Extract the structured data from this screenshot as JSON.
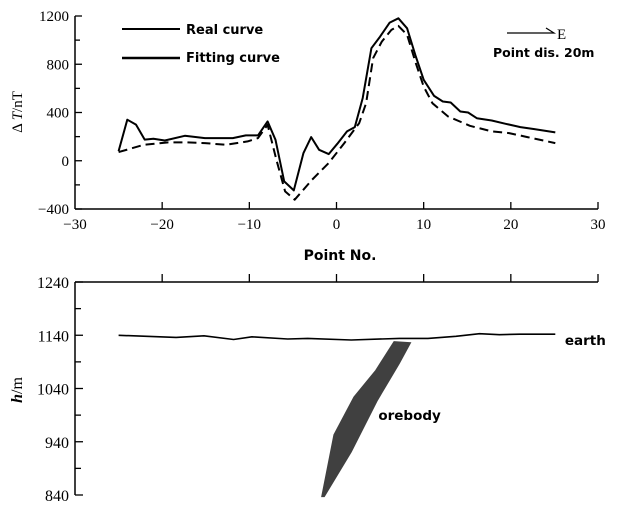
{
  "chart_data": [
    {
      "type": "line",
      "xlabel": "Point No.",
      "ylabel_prefix": "Δ ",
      "ylabel_var": "T",
      "ylabel_unit": "/nT",
      "xlim": [
        -30,
        30
      ],
      "ylim": [
        -400,
        1200
      ],
      "xticks": [
        -30,
        -20,
        -10,
        0,
        10,
        20,
        30
      ],
      "yticks": [
        -400,
        0,
        400,
        800,
        1200
      ],
      "grid": false,
      "legend_placement": "top-left",
      "annotation_arrow_label": "E",
      "annotation_text": "Point dis. 20m",
      "series": [
        {
          "name": "Real curve",
          "style": "solid",
          "color": "#000000",
          "x": [
            -25,
            -24,
            -23,
            -22,
            -21,
            -19.7,
            -17.4,
            -15.1,
            -11.9,
            -10.4,
            -9,
            -7.9,
            -7,
            -6,
            -4.9,
            -3.8,
            -2.9,
            -2,
            -0.9,
            0.1,
            1.2,
            2.1,
            3,
            4,
            5,
            6.1,
            7.1,
            8.1,
            9.1,
            10,
            11.2,
            12.2,
            13.1,
            14.2,
            15.1,
            16.1,
            17.8,
            19.4,
            21.1,
            22.7,
            25.1
          ],
          "y": [
            80,
            340,
            300,
            175,
            182,
            168,
            207,
            188,
            188,
            210,
            210,
            326,
            174,
            -171,
            -246,
            63,
            196,
            91,
            55,
            141,
            243,
            279,
            519,
            933,
            1029,
            1145,
            1181,
            1098,
            864,
            671,
            538,
            491,
            483,
            408,
            400,
            353,
            334,
            306,
            279,
            262,
            235
          ]
        },
        {
          "name": "Fitting curve",
          "style": "dashed",
          "color": "#000000",
          "x": [
            -25,
            -22.1,
            -19.3,
            -17.2,
            -15.1,
            -12.7,
            -10.2,
            -9,
            -7.9,
            -6.9,
            -5.9,
            -4.8,
            -2.8,
            -0.9,
            0.9,
            2.6,
            3.4,
            4.2,
            5.2,
            6.3,
            7.1,
            8.1,
            9.1,
            10,
            11,
            12.8,
            15.3,
            17.8,
            19.8,
            21.9,
            25.1
          ],
          "y": [
            72,
            132,
            152,
            152,
            146,
            132,
            160,
            188,
            298,
            8,
            -254,
            -323,
            -157,
            -19,
            146,
            312,
            477,
            850,
            988,
            1085,
            1118,
            1043,
            809,
            615,
            477,
            367,
            290,
            243,
            229,
            196,
            146
          ]
        }
      ]
    },
    {
      "type": "area",
      "ylabel_var": "h",
      "ylabel_unit": "/m",
      "xlim": [
        -30,
        30
      ],
      "ylim": [
        840,
        1240
      ],
      "xticks": [
        -30,
        -20,
        -10,
        0,
        10,
        20,
        30
      ],
      "yticks": [
        840,
        940,
        1040,
        1140,
        1240
      ],
      "grid": false,
      "earth": {
        "label": "earth",
        "x": [
          -25,
          -18.4,
          -15.2,
          -11.8,
          -9.7,
          -5.6,
          -3.3,
          1.7,
          7.2,
          10.5,
          13.7,
          16.4,
          18.7,
          21,
          25.1
        ],
        "y": [
          1140,
          1136,
          1139,
          1132,
          1137,
          1133,
          1134,
          1131,
          1134,
          1134,
          1138,
          1143,
          1141,
          1142,
          1142
        ]
      },
      "orebody": {
        "label": "orebody",
        "color": "#404040",
        "x": [
          6.6,
          8.5,
          7.2,
          4.7,
          1.7,
          -1.4,
          -1.7,
          -0.3,
          2,
          4.5
        ],
        "y": [
          1128,
          1126,
          1087,
          1018,
          921,
          837,
          837,
          953,
          1024,
          1074
        ]
      }
    }
  ]
}
